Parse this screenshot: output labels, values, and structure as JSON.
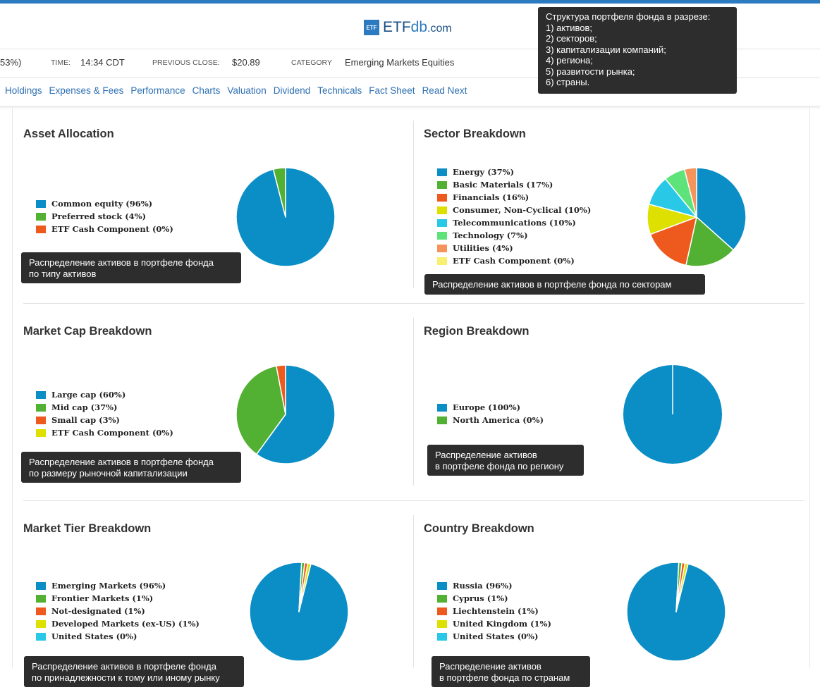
{
  "header": {
    "logo_badge": "ETF",
    "logo_main": "ETF",
    "logo_db": "db",
    "logo_com": ".com"
  },
  "quote_bar": {
    "change_fragment": "53%)",
    "time_label": "TIME:",
    "time_value": "14:34 CDT",
    "prev_close_label": "PREVIOUS CLOSE:",
    "prev_close_value": "$20.89",
    "category_label": "CATEGORY",
    "category_value": "Emerging Markets Equities"
  },
  "nav": [
    "Holdings",
    "Expenses & Fees",
    "Performance",
    "Charts",
    "Valuation",
    "Dividend",
    "Technicals",
    "Fact Sheet",
    "Read Next"
  ],
  "annotations": {
    "main": "Структура портфеля фонда в разрезе:\n1) активов;\n2) секторов;\n3) капитализации компаний;\n4) региона;\n5) развитости рынка;\n6) страны.",
    "asset": "Распределение активов в портфеле фонда\nпо типу активов",
    "sector": "Распределение активов в портфеле фонда по секторам",
    "marketcap": "Распределение активов в портфеле фонда\nпо размеру рыночной капитализации",
    "region": "Распределение активов\nв портфеле фонда по региону",
    "tier": "Распределение активов в портфеле фонда\nпо принадлежности к тому или иному рынку",
    "country": "Распределение активов\nв портфеле фонда по странам"
  },
  "colors": {
    "blue": "#0b8ec6",
    "green": "#52b032",
    "orange": "#ee5a1d",
    "yellow": "#dde000",
    "cyan": "#29c8e6",
    "lightgreen": "#5de37a",
    "salmon": "#f5935d",
    "paleyellow": "#f8f06e"
  },
  "chart_data": [
    {
      "id": "asset",
      "type": "pie",
      "title": "Asset Allocation",
      "labels": [
        "Common equity (96%)",
        "Preferred stock (4%)",
        "ETF Cash Component (0%)"
      ],
      "values": [
        96,
        4,
        0
      ],
      "colors": [
        "#0b8ec6",
        "#52b032",
        "#ee5a1d"
      ]
    },
    {
      "id": "sector",
      "type": "pie",
      "title": "Sector Breakdown",
      "labels": [
        "Energy (37%)",
        "Basic Materials (17%)",
        "Financials (16%)",
        "Consumer, Non-Cyclical (10%)",
        "Telecommunications (10%)",
        "Technology (7%)",
        "Utilities (4%)",
        "ETF Cash Component (0%)"
      ],
      "values": [
        37,
        17,
        16,
        10,
        10,
        7,
        4,
        0
      ],
      "colors": [
        "#0b8ec6",
        "#52b032",
        "#ee5a1d",
        "#dde000",
        "#29c8e6",
        "#5de37a",
        "#f5935d",
        "#f8f06e"
      ]
    },
    {
      "id": "marketcap",
      "type": "pie",
      "title": "Market Cap Breakdown",
      "labels": [
        "Large cap (60%)",
        "Mid cap (37%)",
        "Small cap (3%)",
        "ETF Cash Component (0%)"
      ],
      "values": [
        60,
        37,
        3,
        0
      ],
      "colors": [
        "#0b8ec6",
        "#52b032",
        "#ee5a1d",
        "#dde000"
      ]
    },
    {
      "id": "region",
      "type": "pie",
      "title": "Region Breakdown",
      "labels": [
        "Europe (100%)",
        "North America (0%)"
      ],
      "values": [
        100,
        0
      ],
      "colors": [
        "#0b8ec6",
        "#52b032"
      ]
    },
    {
      "id": "tier",
      "type": "pie",
      "title": "Market Tier Breakdown",
      "labels": [
        "Emerging Markets (96%)",
        "Frontier Markets (1%)",
        "Not-designated (1%)",
        "Developed Markets (ex-US) (1%)",
        "United States (0%)"
      ],
      "values": [
        96,
        1,
        1,
        1,
        0
      ],
      "colors": [
        "#0b8ec6",
        "#52b032",
        "#ee5a1d",
        "#dde000",
        "#29c8e6"
      ]
    },
    {
      "id": "country",
      "type": "pie",
      "title": "Country Breakdown",
      "labels": [
        "Russia (96%)",
        "Cyprus (1%)",
        "Liechtenstein (1%)",
        "United Kingdom (1%)",
        "United States (0%)"
      ],
      "values": [
        96,
        1,
        1,
        1,
        0
      ],
      "colors": [
        "#0b8ec6",
        "#52b032",
        "#ee5a1d",
        "#dde000",
        "#29c8e6"
      ]
    }
  ]
}
